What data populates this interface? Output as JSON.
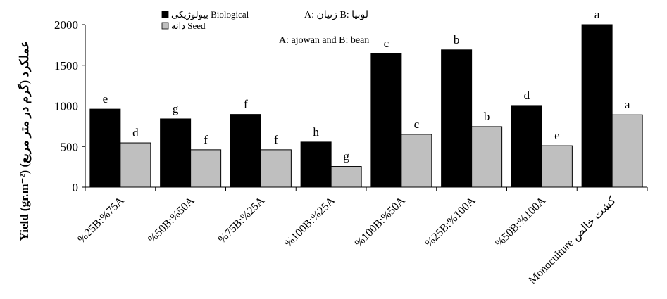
{
  "chart_data": {
    "type": "bar",
    "ylabel": "Yield (gr.m⁻²) (گرم در متر مربع) عملکرد",
    "ylim": [
      0,
      2000
    ],
    "yticks": [
      "0",
      "500",
      "1000",
      "1500",
      "2000"
    ],
    "categories": [
      "%25B:%75A",
      "%50B:%50A",
      "%75B:%25A",
      "%100B:%25A",
      "%100B:%50A",
      "%25B:%100A",
      "%50B:%100A",
      "Monoculture کشت خالص"
    ],
    "series": [
      {
        "name": "بیولوژیکی Biological",
        "color": "#000000",
        "values": [
          960,
          840,
          895,
          555,
          1645,
          1690,
          1005,
          2000
        ],
        "labels": [
          "e",
          "g",
          "f",
          "h",
          "c",
          "b",
          "d",
          "a"
        ]
      },
      {
        "name": "دانه Seed",
        "color": "#bfbfbf",
        "values": [
          545,
          460,
          460,
          255,
          650,
          745,
          510,
          890
        ],
        "labels": [
          "d",
          "f",
          "f",
          "g",
          "c",
          "b",
          "e",
          "a"
        ]
      }
    ],
    "notes": [
      "A: زنیان B: لوبیا",
      "A: ajowan and B: bean"
    ],
    "legend_position": "top-left",
    "grid": false
  }
}
